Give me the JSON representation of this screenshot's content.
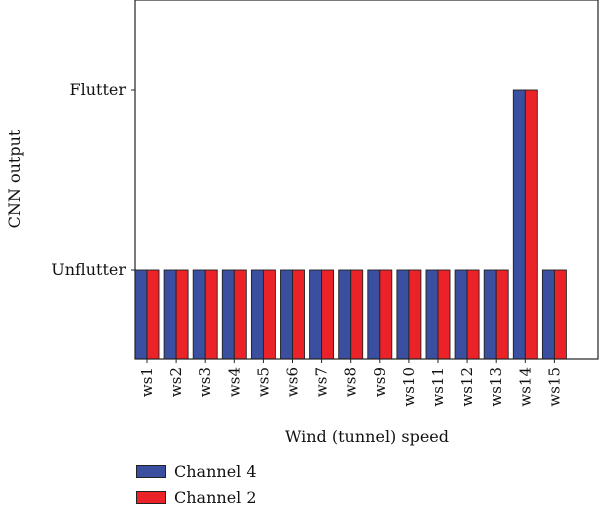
{
  "chart_data": {
    "type": "bar",
    "categories": [
      "ws1",
      "ws2",
      "ws3",
      "ws4",
      "ws5",
      "ws6",
      "ws7",
      "ws8",
      "ws9",
      "ws10",
      "ws11",
      "ws12",
      "ws13",
      "ws14",
      "ws15"
    ],
    "series": [
      {
        "name": "Channel 4",
        "color": "#3a4fa0",
        "values": [
          0,
          0,
          0,
          0,
          0,
          0,
          0,
          0,
          0,
          0,
          0,
          0,
          0,
          1,
          0
        ]
      },
      {
        "name": "Channel 2",
        "color": "#ec2229",
        "values": [
          0,
          0,
          0,
          0,
          0,
          0,
          0,
          0,
          0,
          0,
          0,
          0,
          0,
          1,
          0
        ]
      }
    ],
    "y_ticks": [
      {
        "value": 0,
        "label": "Unflutter"
      },
      {
        "value": 1,
        "label": "Flutter"
      }
    ],
    "xlabel": "Wind (tunnel) speed",
    "ylabel": "CNN output",
    "legend_position": "bottom-left"
  }
}
